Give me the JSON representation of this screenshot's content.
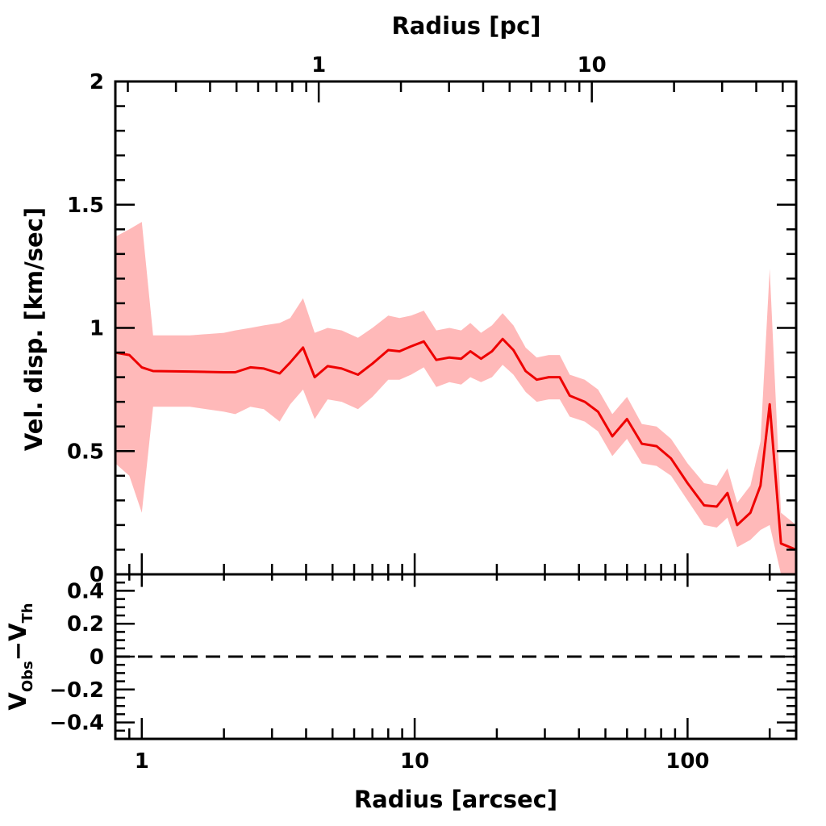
{
  "chart_data": [
    {
      "type": "line",
      "panel": "top",
      "title": "",
      "x_top_label": "Radius [pc]",
      "ylabel": "Vel. disp. [km/sec]",
      "x_scale": "log",
      "y_scale": "linear",
      "xlim": [
        0.8,
        250
      ],
      "ylim": [
        0,
        2
      ],
      "x_top_lim": [
        0.18,
        56
      ],
      "y_ticks": [
        0,
        0.5,
        1,
        1.5,
        2
      ],
      "y_tick_labels": [
        "0",
        "0.5",
        "1",
        "1.5",
        "2"
      ],
      "x_top_ticks": [
        1,
        10
      ],
      "x_top_tick_labels": [
        "1",
        "10"
      ],
      "colors": {
        "line": "#ee0000",
        "band": "#ffb9b9"
      },
      "series": [
        {
          "x": [
            0.8,
            0.9,
            1.0,
            1.1,
            1.5,
            2.0,
            2.2,
            2.5,
            2.8,
            3.2,
            3.5,
            3.9,
            4.3,
            4.8,
            5.4,
            6.2,
            7.0,
            8.0,
            8.8,
            9.7,
            10.8,
            12.0,
            13.4,
            14.8,
            16.0,
            17.5,
            19.2,
            21.0,
            23.0,
            25.5,
            28.0,
            31.0,
            34.0,
            37.0,
            42.0,
            47.0,
            53.0,
            60.0,
            68.0,
            77.0,
            87.0,
            100.0,
            115.0,
            128.0,
            140.0,
            152.0,
            170.0,
            185.0,
            200.0,
            220.0,
            250.0
          ],
          "y": [
            0.9,
            0.89,
            0.84,
            0.825,
            0.823,
            0.82,
            0.82,
            0.84,
            0.835,
            0.815,
            0.86,
            0.92,
            0.8,
            0.845,
            0.835,
            0.81,
            0.855,
            0.91,
            0.905,
            0.925,
            0.945,
            0.87,
            0.88,
            0.875,
            0.905,
            0.875,
            0.905,
            0.955,
            0.91,
            0.825,
            0.79,
            0.8,
            0.8,
            0.725,
            0.7,
            0.66,
            0.56,
            0.63,
            0.53,
            0.52,
            0.47,
            0.37,
            0.28,
            0.275,
            0.33,
            0.2,
            0.25,
            0.36,
            0.69,
            0.125,
            0.1
          ],
          "y_lower": [
            0.45,
            0.4,
            0.25,
            0.68,
            0.68,
            0.66,
            0.65,
            0.68,
            0.67,
            0.62,
            0.69,
            0.75,
            0.63,
            0.71,
            0.7,
            0.67,
            0.72,
            0.79,
            0.79,
            0.81,
            0.84,
            0.76,
            0.78,
            0.77,
            0.8,
            0.78,
            0.8,
            0.85,
            0.81,
            0.74,
            0.7,
            0.71,
            0.71,
            0.64,
            0.62,
            0.58,
            0.48,
            0.55,
            0.45,
            0.44,
            0.4,
            0.3,
            0.2,
            0.19,
            0.23,
            0.11,
            0.14,
            0.18,
            0.2,
            0.0,
            0.0
          ],
          "y_upper": [
            1.37,
            1.4,
            1.43,
            0.97,
            0.97,
            0.98,
            0.99,
            1.0,
            1.01,
            1.02,
            1.04,
            1.12,
            0.98,
            1.0,
            0.99,
            0.96,
            1.0,
            1.05,
            1.04,
            1.05,
            1.07,
            0.99,
            1.0,
            0.99,
            1.02,
            0.98,
            1.01,
            1.06,
            1.01,
            0.92,
            0.88,
            0.89,
            0.89,
            0.81,
            0.79,
            0.75,
            0.65,
            0.72,
            0.61,
            0.6,
            0.55,
            0.45,
            0.37,
            0.36,
            0.43,
            0.29,
            0.36,
            0.54,
            1.24,
            0.25,
            0.2
          ]
        }
      ]
    },
    {
      "type": "line",
      "panel": "bottom",
      "title": "",
      "xlabel": "Radius [arcsec]",
      "ylabel_main": "V",
      "ylabel_sub1": "Obs",
      "ylabel_mid": "−V",
      "ylabel_sub2": "Th",
      "x_scale": "log",
      "xlim": [
        0.8,
        250
      ],
      "ylim": [
        -0.5,
        0.5
      ],
      "y_ticks": [
        -0.4,
        -0.2,
        0,
        0.2,
        0.4
      ],
      "y_tick_labels": [
        "−0.4",
        "−0.2",
        "0",
        "0.2",
        "0.4"
      ],
      "x_ticks": [
        1,
        10,
        100
      ],
      "x_tick_labels": [
        "1",
        "10",
        "100"
      ],
      "reference_line": {
        "y": 0,
        "style": "dashed"
      }
    }
  ]
}
